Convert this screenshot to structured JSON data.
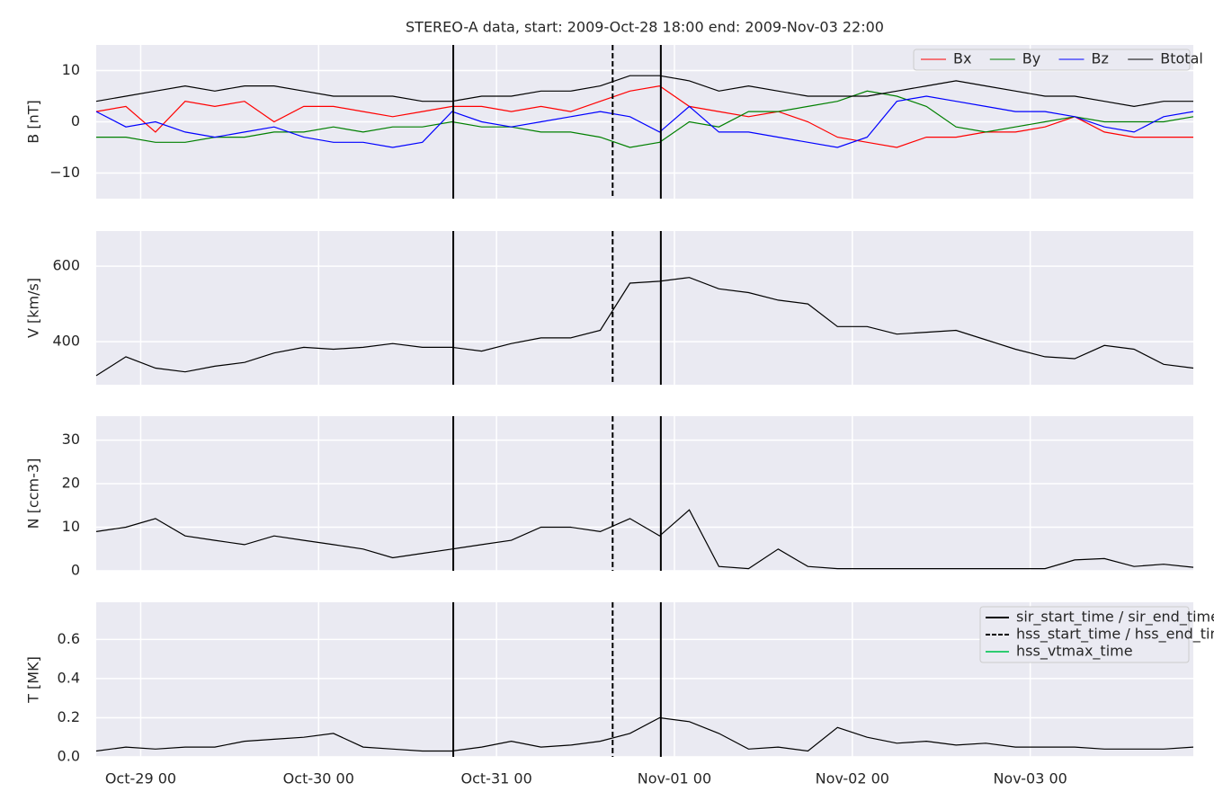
{
  "title": "STEREO-A data, start: 2009-Oct-28 18:00  end: 2009-Nov-03 22:00",
  "x": [
    "2009-10-28 18:00",
    "2009-10-28 22:00",
    "2009-10-29 02:00",
    "2009-10-29 06:00",
    "2009-10-29 10:00",
    "2009-10-29 14:00",
    "2009-10-29 18:00",
    "2009-10-29 22:00",
    "2009-10-30 02:00",
    "2009-10-30 06:00",
    "2009-10-30 10:00",
    "2009-10-30 14:00",
    "2009-10-30 18:00",
    "2009-10-30 22:00",
    "2009-10-31 02:00",
    "2009-10-31 06:00",
    "2009-10-31 10:00",
    "2009-10-31 14:00",
    "2009-10-31 18:00",
    "2009-10-31 22:00",
    "2009-11-01 02:00",
    "2009-11-01 06:00",
    "2009-11-01 10:00",
    "2009-11-01 14:00",
    "2009-11-01 18:00",
    "2009-11-01 22:00",
    "2009-11-02 02:00",
    "2009-11-02 06:00",
    "2009-11-02 10:00",
    "2009-11-02 14:00",
    "2009-11-02 18:00",
    "2009-11-02 22:00",
    "2009-11-03 02:00",
    "2009-11-03 06:00",
    "2009-11-03 10:00",
    "2009-11-03 14:00",
    "2009-11-03 18:00",
    "2009-11-03 22:00"
  ],
  "xlim": [
    "2009-10-28 18:00",
    "2009-11-03 22:00"
  ],
  "xticks": [
    {
      "value": "2009-10-29 00:00",
      "label": "Oct-29 00"
    },
    {
      "value": "2009-10-30 00:00",
      "label": "Oct-30 00"
    },
    {
      "value": "2009-10-31 00:00",
      "label": "Oct-31 00"
    },
    {
      "value": "2009-11-01 00:00",
      "label": "Nov-01 00"
    },
    {
      "value": "2009-11-02 00:00",
      "label": "Nov-02 00"
    },
    {
      "value": "2009-11-03 00:00",
      "label": "Nov-03 00"
    }
  ],
  "events": [
    {
      "name": "sir_start_time / sir_end_time",
      "style": "solid",
      "color": "#000000",
      "x": [
        "2009-10-30 18:10",
        "2009-10-31 22:10"
      ]
    },
    {
      "name": "hss_start_time / hss_end_time",
      "style": "dashed",
      "color": "#000000",
      "x": [
        "2009-10-31 15:40"
      ]
    },
    {
      "name": "hss_vtmax_time",
      "style": "solid",
      "color": "#2ecc71",
      "x": []
    }
  ],
  "chart_data": [
    {
      "type": "line",
      "ylabel": "B [nT]",
      "ylim": [
        -15,
        15
      ],
      "yticks": [
        {
          "value": -10,
          "label": "−10"
        },
        0,
        10
      ],
      "grid": true,
      "legend": "upper right",
      "series": [
        {
          "name": "Bx",
          "color": "#ff0000",
          "values": [
            2,
            3,
            -2,
            4,
            3,
            4,
            0,
            3,
            3,
            2,
            1,
            2,
            3,
            3,
            2,
            3,
            2,
            4,
            6,
            7,
            3,
            2,
            1,
            2,
            0,
            -3,
            -4,
            -5,
            -3,
            -3,
            -2,
            -2,
            -1,
            1,
            -2,
            -3,
            -3,
            -3
          ]
        },
        {
          "name": "By",
          "color": "#008000",
          "values": [
            -3,
            -3,
            -4,
            -4,
            -3,
            -3,
            -2,
            -2,
            -1,
            -2,
            -1,
            -1,
            0,
            -1,
            -1,
            -2,
            -2,
            -3,
            -5,
            -4,
            0,
            -1,
            2,
            2,
            3,
            4,
            6,
            5,
            3,
            -1,
            -2,
            -1,
            0,
            1,
            0,
            0,
            0,
            1
          ]
        },
        {
          "name": "Bz",
          "color": "#0000ff",
          "values": [
            2,
            -1,
            0,
            -2,
            -3,
            -2,
            -1,
            -3,
            -4,
            -4,
            -5,
            -4,
            2,
            0,
            -1,
            0,
            1,
            2,
            1,
            -2,
            3,
            -2,
            -2,
            -3,
            -4,
            -5,
            -3,
            4,
            5,
            4,
            3,
            2,
            2,
            1,
            -1,
            -2,
            1,
            2
          ]
        },
        {
          "name": "Btotal",
          "color": "#000000",
          "values": [
            4,
            5,
            6,
            7,
            6,
            7,
            7,
            6,
            5,
            5,
            5,
            4,
            4,
            5,
            5,
            6,
            6,
            7,
            9,
            9,
            8,
            6,
            7,
            6,
            5,
            5,
            5,
            6,
            7,
            8,
            7,
            6,
            5,
            5,
            4,
            3,
            4,
            4
          ]
        }
      ]
    },
    {
      "type": "line",
      "ylabel": "V [km/s]",
      "ylim": [
        286,
        693
      ],
      "yticks": [
        400,
        600
      ],
      "grid": true,
      "series": [
        {
          "color": "#000000",
          "values": [
            310,
            360,
            330,
            320,
            335,
            345,
            370,
            385,
            380,
            385,
            395,
            385,
            385,
            375,
            395,
            410,
            410,
            430,
            555,
            560,
            570,
            540,
            530,
            510,
            500,
            440,
            440,
            420,
            425,
            430,
            405,
            380,
            360,
            355,
            390,
            380,
            340,
            330
          ]
        }
      ]
    },
    {
      "type": "line",
      "ylabel": "N [ccm-3]",
      "ylim": [
        0,
        35.5
      ],
      "yticks": [
        0,
        10,
        20,
        30
      ],
      "grid": true,
      "series": [
        {
          "color": "#000000",
          "values": [
            9,
            10,
            12,
            8,
            7,
            6,
            8,
            7,
            6,
            5,
            3,
            4,
            5,
            6,
            7,
            10,
            10,
            9,
            12,
            8,
            14,
            1,
            0.5,
            5,
            1,
            0.5,
            0.5,
            0.5,
            0.5,
            0.5,
            0.5,
            0.5,
            0.5,
            2.5,
            2.8,
            1,
            1.5,
            0.8
          ]
        }
      ]
    },
    {
      "type": "line",
      "ylabel": "T [MK]",
      "ylim": [
        0,
        0.79
      ],
      "yticks": [
        {
          "value": 0,
          "label": "0.0"
        },
        0.2,
        0.4,
        0.6
      ],
      "grid": true,
      "legend": "upper right",
      "series": [
        {
          "color": "#000000",
          "values": [
            0.03,
            0.05,
            0.04,
            0.05,
            0.05,
            0.08,
            0.09,
            0.1,
            0.12,
            0.05,
            0.04,
            0.03,
            0.03,
            0.05,
            0.08,
            0.05,
            0.06,
            0.08,
            0.12,
            0.2,
            0.18,
            0.12,
            0.04,
            0.05,
            0.03,
            0.15,
            0.1,
            0.07,
            0.08,
            0.06,
            0.07,
            0.05,
            0.05,
            0.05,
            0.04,
            0.04,
            0.04,
            0.05
          ]
        }
      ]
    }
  ]
}
